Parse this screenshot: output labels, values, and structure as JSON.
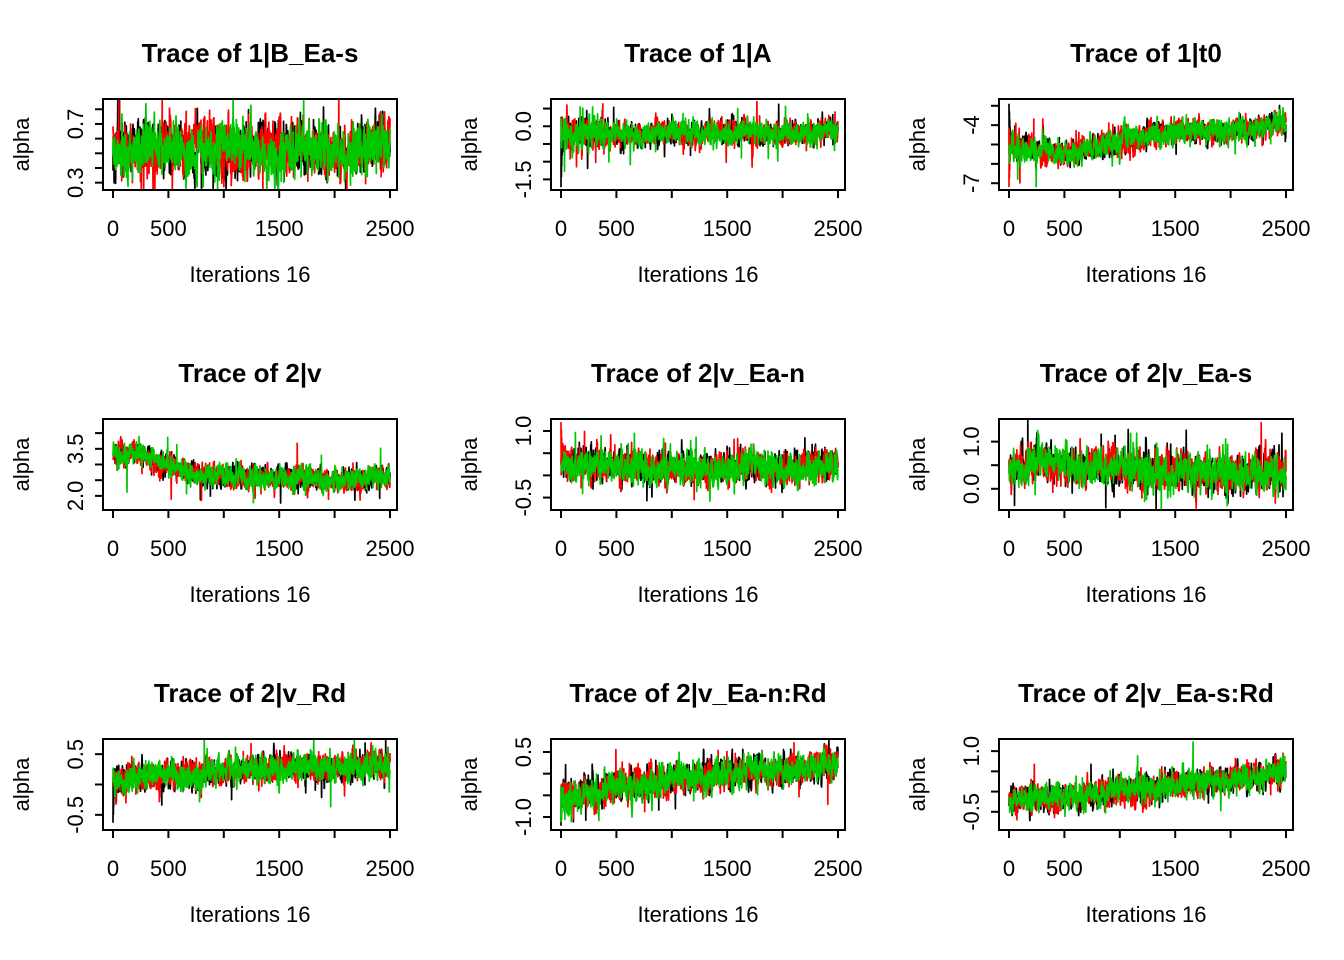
{
  "figure_layout": {
    "rows": 3,
    "columns": 3,
    "background": "#ffffff",
    "frame_color": "#000000",
    "text_color": "#000000"
  },
  "chart_data": [
    {
      "type": "line",
      "title": "Trace of 1|B_Ea-s",
      "xlabel": "Iterations 16",
      "ylabel": "alpha",
      "xlim": [
        0,
        2500
      ],
      "x_ticks": [
        0,
        500,
        1000,
        1500,
        2000,
        2500
      ],
      "x_tick_labels": [
        "0",
        "500",
        "",
        "1500",
        "",
        "2500"
      ],
      "ylim": [
        0.25,
        0.87
      ],
      "y_ticks": [
        0.3,
        0.4,
        0.5,
        0.6,
        0.7,
        0.8
      ],
      "y_tick_labels": [
        "0.3",
        "",
        "",
        "",
        "0.7",
        ""
      ],
      "legend": "none",
      "grid": "off",
      "chains": [
        {
          "name": "chain-1",
          "color": "#000000"
        },
        {
          "name": "chain-2",
          "color": "#FF0000"
        },
        {
          "name": "chain-3",
          "color": "#00C800"
        }
      ],
      "trend": [
        [
          0,
          0.53
        ],
        [
          2500,
          0.53
        ]
      ],
      "noise_sd": 0.085,
      "seed": 7
    },
    {
      "type": "line",
      "title": "Trace of 1|A",
      "xlabel": "Iterations 16",
      "ylabel": "alpha",
      "xlim": [
        0,
        2500
      ],
      "x_ticks": [
        0,
        500,
        1000,
        1500,
        2000,
        2500
      ],
      "x_tick_labels": [
        "0",
        "500",
        "",
        "1500",
        "",
        "2500"
      ],
      "ylim": [
        -1.8,
        0.77
      ],
      "y_ticks": [
        -1.5,
        -1.0,
        -0.5,
        0.0,
        0.5
      ],
      "y_tick_labels": [
        "-1.5",
        "",
        "",
        "0.0",
        ""
      ],
      "legend": "none",
      "grid": "off",
      "chains": [
        {
          "name": "chain-1",
          "color": "#000000"
        },
        {
          "name": "chain-2",
          "color": "#FF0000"
        },
        {
          "name": "chain-3",
          "color": "#00C800"
        }
      ],
      "trend": [
        [
          0,
          -0.22
        ],
        [
          400,
          -0.22
        ],
        [
          2500,
          -0.16
        ]
      ],
      "noise_sd": 0.16,
      "early_until": 400,
      "early_sd_boost": 1.5,
      "start_transients": [
        {
          "chain": 0,
          "direction": -1,
          "magnitude": 1.5
        }
      ],
      "seed": 11
    },
    {
      "type": "line",
      "title": "Trace of 1|t0",
      "xlabel": "Iterations 16",
      "ylabel": "alpha",
      "xlim": [
        0,
        2500
      ],
      "x_ticks": [
        0,
        500,
        1000,
        1500,
        2000,
        2500
      ],
      "x_tick_labels": [
        "0",
        "500",
        "",
        "1500",
        "",
        "2500"
      ],
      "ylim": [
        -7.35,
        -2.65
      ],
      "y_ticks": [
        -7,
        -6,
        -5,
        -4,
        -3
      ],
      "y_tick_labels": [
        "-7",
        "",
        "",
        "-4",
        ""
      ],
      "legend": "none",
      "grid": "off",
      "chains": [
        {
          "name": "chain-1",
          "color": "#000000"
        },
        {
          "name": "chain-2",
          "color": "#FF0000"
        },
        {
          "name": "chain-3",
          "color": "#00C800"
        }
      ],
      "trend": [
        [
          0,
          -4.9
        ],
        [
          150,
          -5.2
        ],
        [
          400,
          -5.55
        ],
        [
          650,
          -5.35
        ],
        [
          900,
          -4.95
        ],
        [
          1200,
          -4.55
        ],
        [
          1600,
          -4.35
        ],
        [
          2000,
          -4.25
        ],
        [
          2500,
          -4.05
        ]
      ],
      "noise_sd": 0.3,
      "early_until": 300,
      "early_sd_boost": 1.15,
      "start_transients": [
        {
          "chain": 0,
          "direction": 1,
          "magnitude": 2.0
        },
        {
          "chain": 1,
          "direction": -1,
          "magnitude": 2.3
        }
      ],
      "seed": 13
    },
    {
      "type": "line",
      "title": "Trace of 2|v",
      "xlabel": "Iterations 16",
      "ylabel": "alpha",
      "xlim": [
        0,
        2500
      ],
      "x_ticks": [
        0,
        500,
        1000,
        1500,
        2000,
        2500
      ],
      "x_tick_labels": [
        "0",
        "500",
        "",
        "1500",
        "",
        "2500"
      ],
      "ylim": [
        1.55,
        4.45
      ],
      "y_ticks": [
        2.0,
        2.5,
        3.0,
        3.5,
        4.0
      ],
      "y_tick_labels": [
        "2.0",
        "",
        "",
        "3.5",
        ""
      ],
      "legend": "none",
      "grid": "off",
      "chains": [
        {
          "name": "chain-1",
          "color": "#000000"
        },
        {
          "name": "chain-2",
          "color": "#FF0000"
        },
        {
          "name": "chain-3",
          "color": "#00C800"
        }
      ],
      "trend": [
        [
          0,
          3.35
        ],
        [
          220,
          3.35
        ],
        [
          400,
          3.05
        ],
        [
          650,
          2.8
        ],
        [
          900,
          2.62
        ],
        [
          1300,
          2.55
        ],
        [
          1700,
          2.6
        ],
        [
          2100,
          2.5
        ],
        [
          2500,
          2.55
        ]
      ],
      "noise_sd": 0.17,
      "seed": 17
    },
    {
      "type": "line",
      "title": "Trace of 2|v_Ea-n",
      "xlabel": "Iterations 16",
      "ylabel": "alpha",
      "xlim": [
        0,
        2500
      ],
      "x_ticks": [
        0,
        500,
        1000,
        1500,
        2000,
        2500
      ],
      "x_tick_labels": [
        "0",
        "500",
        "",
        "1500",
        "",
        "2500"
      ],
      "ylim": [
        -0.78,
        1.27
      ],
      "y_ticks": [
        -0.5,
        0.0,
        0.5,
        1.0
      ],
      "y_tick_labels": [
        "-0.5",
        "",
        "",
        "1.0"
      ],
      "legend": "none",
      "grid": "off",
      "chains": [
        {
          "name": "chain-1",
          "color": "#000000"
        },
        {
          "name": "chain-2",
          "color": "#FF0000"
        },
        {
          "name": "chain-3",
          "color": "#00C800"
        }
      ],
      "trend": [
        [
          0,
          0.3
        ],
        [
          400,
          0.2
        ],
        [
          1200,
          0.15
        ],
        [
          2500,
          0.2
        ]
      ],
      "noise_sd": 0.17,
      "start_transients": [
        {
          "chain": 1,
          "direction": 1,
          "magnitude": 0.9
        }
      ],
      "seed": 19
    },
    {
      "type": "line",
      "title": "Trace of 2|v_Ea-s",
      "xlabel": "Iterations 16",
      "ylabel": "alpha",
      "xlim": [
        0,
        2500
      ],
      "x_ticks": [
        0,
        500,
        1000,
        1500,
        2000,
        2500
      ],
      "x_tick_labels": [
        "0",
        "500",
        "",
        "1500",
        "",
        "2500"
      ],
      "ylim": [
        -0.45,
        1.48
      ],
      "y_ticks": [
        0.0,
        0.5,
        1.0
      ],
      "y_tick_labels": [
        "0.0",
        "",
        "1.0"
      ],
      "legend": "none",
      "grid": "off",
      "chains": [
        {
          "name": "chain-1",
          "color": "#000000"
        },
        {
          "name": "chain-2",
          "color": "#FF0000"
        },
        {
          "name": "chain-3",
          "color": "#00C800"
        }
      ],
      "trend": [
        [
          0,
          0.4
        ],
        [
          250,
          0.55
        ],
        [
          600,
          0.48
        ],
        [
          1100,
          0.42
        ],
        [
          1700,
          0.35
        ],
        [
          2500,
          0.33
        ]
      ],
      "noise_sd": 0.19,
      "seed": 23
    },
    {
      "type": "line",
      "title": "Trace of 2|v_Rd",
      "xlabel": "Iterations 16",
      "ylabel": "alpha",
      "xlim": [
        0,
        2500
      ],
      "x_ticks": [
        0,
        500,
        1000,
        1500,
        2000,
        2500
      ],
      "x_tick_labels": [
        "0",
        "500",
        "",
        "1500",
        "",
        "2500"
      ],
      "ylim": [
        -0.75,
        0.75
      ],
      "y_ticks": [
        -0.5,
        0.0,
        0.5
      ],
      "y_tick_labels": [
        "-0.5",
        "",
        "0.5"
      ],
      "legend": "none",
      "grid": "off",
      "chains": [
        {
          "name": "chain-1",
          "color": "#000000"
        },
        {
          "name": "chain-2",
          "color": "#FF0000"
        },
        {
          "name": "chain-3",
          "color": "#00C800"
        }
      ],
      "trend": [
        [
          0,
          0.05
        ],
        [
          400,
          0.14
        ],
        [
          900,
          0.2
        ],
        [
          1400,
          0.27
        ],
        [
          2500,
          0.3
        ]
      ],
      "noise_sd": 0.115,
      "start_transients": [
        {
          "chain": 0,
          "direction": -1,
          "magnitude": 0.68
        }
      ],
      "seed": 29
    },
    {
      "type": "line",
      "title": "Trace of 2|v_Ea-n:Rd",
      "xlabel": "Iterations 16",
      "ylabel": "alpha",
      "xlim": [
        0,
        2500
      ],
      "x_ticks": [
        0,
        500,
        1000,
        1500,
        2000,
        2500
      ],
      "x_tick_labels": [
        "0",
        "500",
        "",
        "1500",
        "",
        "2500"
      ],
      "ylim": [
        -1.3,
        0.8
      ],
      "y_ticks": [
        -1.0,
        -0.5,
        0.0,
        0.5
      ],
      "y_tick_labels": [
        "-1.0",
        "",
        "",
        "0.5"
      ],
      "legend": "none",
      "grid": "off",
      "chains": [
        {
          "name": "chain-1",
          "color": "#000000"
        },
        {
          "name": "chain-2",
          "color": "#FF0000"
        },
        {
          "name": "chain-3",
          "color": "#00C800"
        }
      ],
      "trend": [
        [
          0,
          -0.5
        ],
        [
          300,
          -0.42
        ],
        [
          700,
          -0.25
        ],
        [
          1100,
          -0.1
        ],
        [
          1600,
          0.03
        ],
        [
          2100,
          0.12
        ],
        [
          2500,
          0.15
        ]
      ],
      "noise_sd": 0.17,
      "start_transients": [
        {
          "chain": 0,
          "direction": -1,
          "magnitude": 0.7
        },
        {
          "chain": 2,
          "direction": -1,
          "magnitude": 0.62
        }
      ],
      "seed": 31
    },
    {
      "type": "line",
      "title": "Trace of 2|v_Ea-s:Rd",
      "xlabel": "Iterations 16",
      "ylabel": "alpha",
      "xlim": [
        0,
        2500
      ],
      "x_ticks": [
        0,
        500,
        1000,
        1500,
        2000,
        2500
      ],
      "x_tick_labels": [
        "0",
        "500",
        "",
        "1500",
        "",
        "2500"
      ],
      "ylim": [
        -0.95,
        1.3
      ],
      "y_ticks": [
        -0.5,
        0.0,
        0.5,
        1.0
      ],
      "y_tick_labels": [
        "-0.5",
        "",
        "",
        "1.0"
      ],
      "legend": "none",
      "grid": "off",
      "chains": [
        {
          "name": "chain-1",
          "color": "#000000"
        },
        {
          "name": "chain-2",
          "color": "#FF0000"
        },
        {
          "name": "chain-3",
          "color": "#00C800"
        }
      ],
      "trend": [
        [
          0,
          -0.2
        ],
        [
          400,
          -0.18
        ],
        [
          900,
          -0.03
        ],
        [
          1400,
          0.15
        ],
        [
          1900,
          0.3
        ],
        [
          2500,
          0.45
        ]
      ],
      "noise_sd": 0.16,
      "seed": 37
    }
  ]
}
